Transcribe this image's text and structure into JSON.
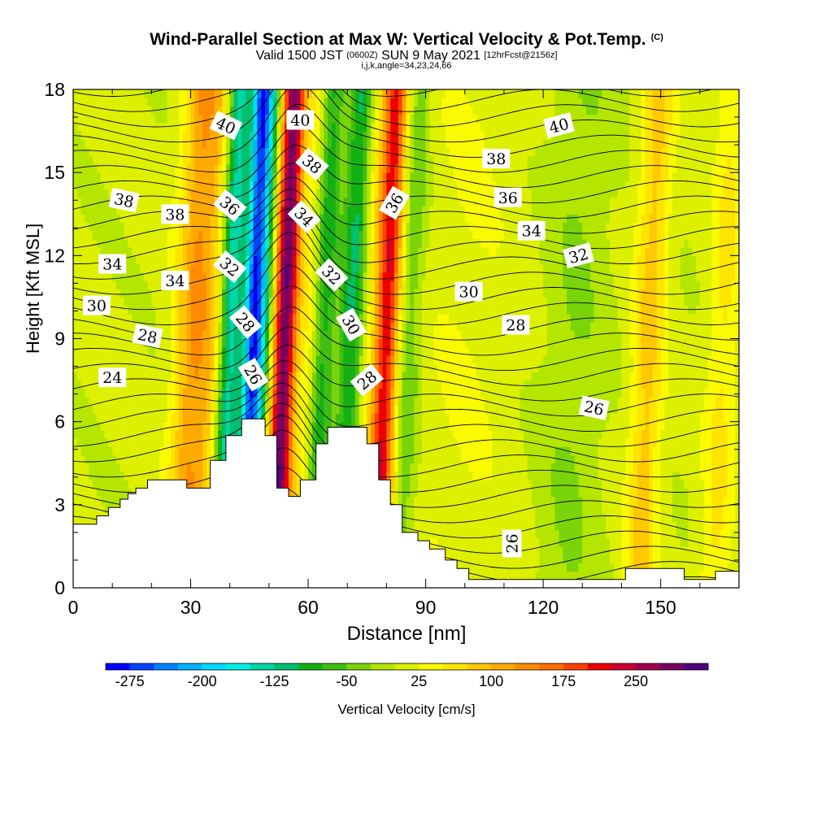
{
  "title": {
    "main": "Wind-Parallel Section at Max W: Vertical Velocity & Pot.Temp.",
    "copyright": "(C)",
    "valid_prefix": "Valid 1500 JST",
    "utc": "(0600Z)",
    "valid_suffix": "SUN 9 May 2021",
    "forecast": "[12hrFcst@2156z]",
    "params": "i,j,k,angle=34,23,24,66"
  },
  "chart_data": {
    "type": "heatmap",
    "xlabel": "Distance [nm]",
    "ylabel": "Height [Kft MSL]",
    "xlim": [
      0,
      170
    ],
    "ylim": [
      0,
      18
    ],
    "xticks": [
      "0",
      "30",
      "60",
      "90",
      "120",
      "150"
    ],
    "yticks": [
      "0",
      "3",
      "6",
      "9",
      "12",
      "15",
      "18"
    ],
    "colorbar": {
      "label": "Vertical Velocity [cm/s]",
      "tick_labels": [
        "-275",
        "-200",
        "-125",
        "-50",
        "25",
        "100",
        "175",
        "250"
      ],
      "colors": [
        "#0000ff",
        "#0044ff",
        "#0080ff",
        "#00b4ff",
        "#00dcff",
        "#00f0e0",
        "#00d6a6",
        "#00c070",
        "#14b014",
        "#40be14",
        "#7ad40a",
        "#b4e600",
        "#dcf000",
        "#fafa00",
        "#ffe400",
        "#ffc800",
        "#ffaa00",
        "#ff8c00",
        "#ff6e00",
        "#ff4000",
        "#ee0000",
        "#cc0030",
        "#a00050",
        "#780060",
        "#500080"
      ]
    },
    "series": [
      {
        "name": "Vertical Velocity",
        "units": "cm/s",
        "structure": [
          {
            "x": 7,
            "w": 8,
            "value": 0
          },
          {
            "x": 31,
            "w": 5,
            "value": 120
          },
          {
            "x": 36,
            "w": 3,
            "value": 40
          },
          {
            "x": 40,
            "w": 3,
            "value": -150
          },
          {
            "x": 46,
            "w": 2.5,
            "value": -275
          },
          {
            "x": 49,
            "w": 2,
            "value": -80
          },
          {
            "x": 54,
            "w": 3,
            "value": 290
          },
          {
            "x": 60,
            "w": 2.5,
            "value": 40
          },
          {
            "x": 64,
            "w": 3,
            "value": -90
          },
          {
            "x": 71,
            "w": 3,
            "value": -110
          },
          {
            "x": 76,
            "w": 3,
            "value": 30
          },
          {
            "x": 80,
            "w": 3,
            "value": 210
          },
          {
            "x": 86,
            "w": 3,
            "value": -50
          },
          {
            "x": 100,
            "w": 12,
            "value": 20
          },
          {
            "x": 128,
            "w": 8,
            "value": -30
          },
          {
            "x": 147,
            "w": 4,
            "value": 80
          },
          {
            "x": 166,
            "w": 4,
            "value": 50
          }
        ]
      },
      {
        "name": "Potential Temperature",
        "units": "C",
        "contour_labels": [
          {
            "text": "40",
            "x": 39,
            "y": 16.7,
            "rot": 25
          },
          {
            "text": "40",
            "x": 58,
            "y": 16.9,
            "rot": 0
          },
          {
            "text": "40",
            "x": 124,
            "y": 16.7,
            "rot": -15
          },
          {
            "text": "38",
            "x": 13,
            "y": 14.0,
            "rot": 12
          },
          {
            "text": "38",
            "x": 26,
            "y": 13.5,
            "rot": 0
          },
          {
            "text": "38",
            "x": 61,
            "y": 15.3,
            "rot": 40
          },
          {
            "text": "38",
            "x": 108,
            "y": 15.5,
            "rot": 0
          },
          {
            "text": "36",
            "x": 40,
            "y": 13.8,
            "rot": 40
          },
          {
            "text": "36",
            "x": 82,
            "y": 13.9,
            "rot": -60
          },
          {
            "text": "36",
            "x": 111,
            "y": 14.1,
            "rot": 0
          },
          {
            "text": "34",
            "x": 10,
            "y": 11.7,
            "rot": 0
          },
          {
            "text": "34",
            "x": 26,
            "y": 11.1,
            "rot": 0
          },
          {
            "text": "34",
            "x": 59,
            "y": 13.4,
            "rot": 45
          },
          {
            "text": "34",
            "x": 117,
            "y": 12.9,
            "rot": 0
          },
          {
            "text": "32",
            "x": 40,
            "y": 11.6,
            "rot": 40
          },
          {
            "text": "32",
            "x": 66,
            "y": 11.3,
            "rot": 45
          },
          {
            "text": "32",
            "x": 129,
            "y": 12.0,
            "rot": -15
          },
          {
            "text": "30",
            "x": 6,
            "y": 10.2,
            "rot": 0
          },
          {
            "text": "30",
            "x": 71,
            "y": 9.5,
            "rot": 60
          },
          {
            "text": "30",
            "x": 101,
            "y": 10.7,
            "rot": 0
          },
          {
            "text": "28",
            "x": 19,
            "y": 9.1,
            "rot": 12
          },
          {
            "text": "28",
            "x": 44,
            "y": 9.6,
            "rot": 50
          },
          {
            "text": "28",
            "x": 75,
            "y": 7.5,
            "rot": -40
          },
          {
            "text": "28",
            "x": 113,
            "y": 9.5,
            "rot": 0
          },
          {
            "text": "26",
            "x": 46,
            "y": 7.7,
            "rot": 60
          },
          {
            "text": "26",
            "x": 133,
            "y": 6.5,
            "rot": 12
          },
          {
            "text": "26",
            "x": 112,
            "y": 1.6,
            "rot": -90
          },
          {
            "text": "24",
            "x": 10,
            "y": 7.6,
            "rot": 0
          }
        ]
      }
    ],
    "terrain_kft": [
      [
        0,
        2.3
      ],
      [
        6,
        2.3
      ],
      [
        6,
        2.6
      ],
      [
        9,
        2.6
      ],
      [
        9,
        2.9
      ],
      [
        12,
        2.9
      ],
      [
        12,
        3.2
      ],
      [
        14,
        3.2
      ],
      [
        14,
        3.4
      ],
      [
        16,
        3.4
      ],
      [
        16,
        3.6
      ],
      [
        19,
        3.6
      ],
      [
        19,
        3.9
      ],
      [
        29,
        3.9
      ],
      [
        29,
        3.6
      ],
      [
        35,
        3.6
      ],
      [
        35,
        4.6
      ],
      [
        39,
        4.6
      ],
      [
        39,
        5.5
      ],
      [
        43,
        5.5
      ],
      [
        43,
        6.1
      ],
      [
        49,
        6.1
      ],
      [
        49,
        5.5
      ],
      [
        52,
        5.5
      ],
      [
        52,
        3.6
      ],
      [
        55,
        3.6
      ],
      [
        55,
        3.3
      ],
      [
        58,
        3.3
      ],
      [
        58,
        3.9
      ],
      [
        62,
        3.9
      ],
      [
        62,
        5.2
      ],
      [
        65,
        5.2
      ],
      [
        65,
        5.8
      ],
      [
        75,
        5.8
      ],
      [
        75,
        5.2
      ],
      [
        78,
        5.2
      ],
      [
        78,
        3.9
      ],
      [
        81,
        3.9
      ],
      [
        81,
        3.0
      ],
      [
        84,
        3.0
      ],
      [
        84,
        2.0
      ],
      [
        88,
        2.0
      ],
      [
        88,
        1.7
      ],
      [
        91,
        1.7
      ],
      [
        91,
        1.4
      ],
      [
        95,
        1.4
      ],
      [
        95,
        1.0
      ],
      [
        98,
        1.0
      ],
      [
        98,
        0.7
      ],
      [
        101,
        0.7
      ],
      [
        101,
        0.3
      ],
      [
        141,
        0.3
      ],
      [
        141,
        0.7
      ],
      [
        156,
        0.7
      ],
      [
        156,
        0.3
      ],
      [
        164,
        0.3
      ],
      [
        164,
        0.6
      ],
      [
        170,
        0.6
      ],
      [
        170,
        0
      ]
    ]
  }
}
